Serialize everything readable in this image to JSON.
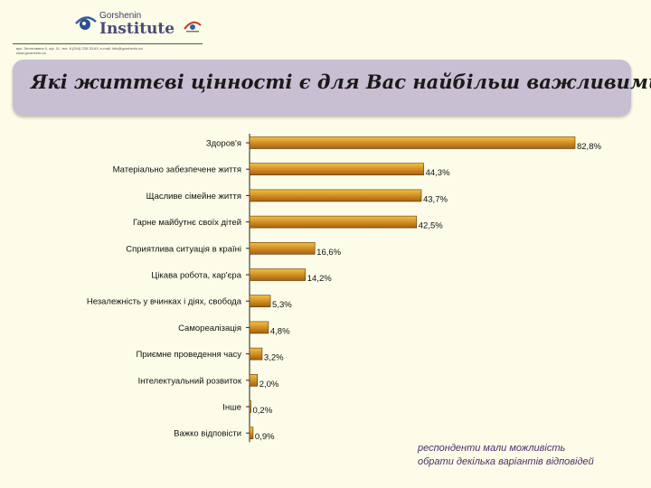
{
  "header": {
    "logo_small": "Gorshenin",
    "logo_big": "Institute",
    "contacts_line1": "вул. Леонтовича 9, оф. 11, тел. 8 (044) 235-33-63, e-mail: info@gorshenin.ua",
    "contacts_line2": "www.gorshenin.ua"
  },
  "title": "Які життєві цінності є для Вас найбільш важливими?",
  "footnote": {
    "line1": "респонденти мали можливість",
    "line2": "обрати декілька варіантів відповідей"
  },
  "colors": {
    "bar_fill_top": "#f5c043",
    "bar_fill_bottom": "#a9600e",
    "banner": "#c8bfd2",
    "background": "#fcfce8"
  },
  "chart_data": {
    "type": "bar",
    "orientation": "horizontal",
    "title": "Які життєві цінності є для Вас найбільш важливими?",
    "categories": [
      "Здоров'я",
      "Матеріально забезпечене життя",
      "Щасливе сімейне життя",
      "Гарне майбутнє своїх дітей",
      "Сприятлива ситуація в країні",
      "Цікава робота, кар'єра",
      "Незалежність у вчинках і діях, свобода",
      "Самореалізація",
      "Приємне проведення часу",
      "Інтелектуальний розвиток",
      "Інше",
      "Важко відповісти"
    ],
    "values": [
      82.8,
      44.3,
      43.7,
      42.5,
      16.6,
      14.2,
      5.3,
      4.8,
      3.2,
      2.0,
      0.2,
      0.9
    ],
    "value_labels": [
      "82,8%",
      "44,3%",
      "43,7%",
      "42,5%",
      "16,6%",
      "14,2%",
      "5,3%",
      "4,8%",
      "3,2%",
      "2,0%",
      "0,2%",
      "0,9%"
    ],
    "unit": "%",
    "xlim": [
      0,
      100
    ],
    "grid": false,
    "legend": "none"
  }
}
